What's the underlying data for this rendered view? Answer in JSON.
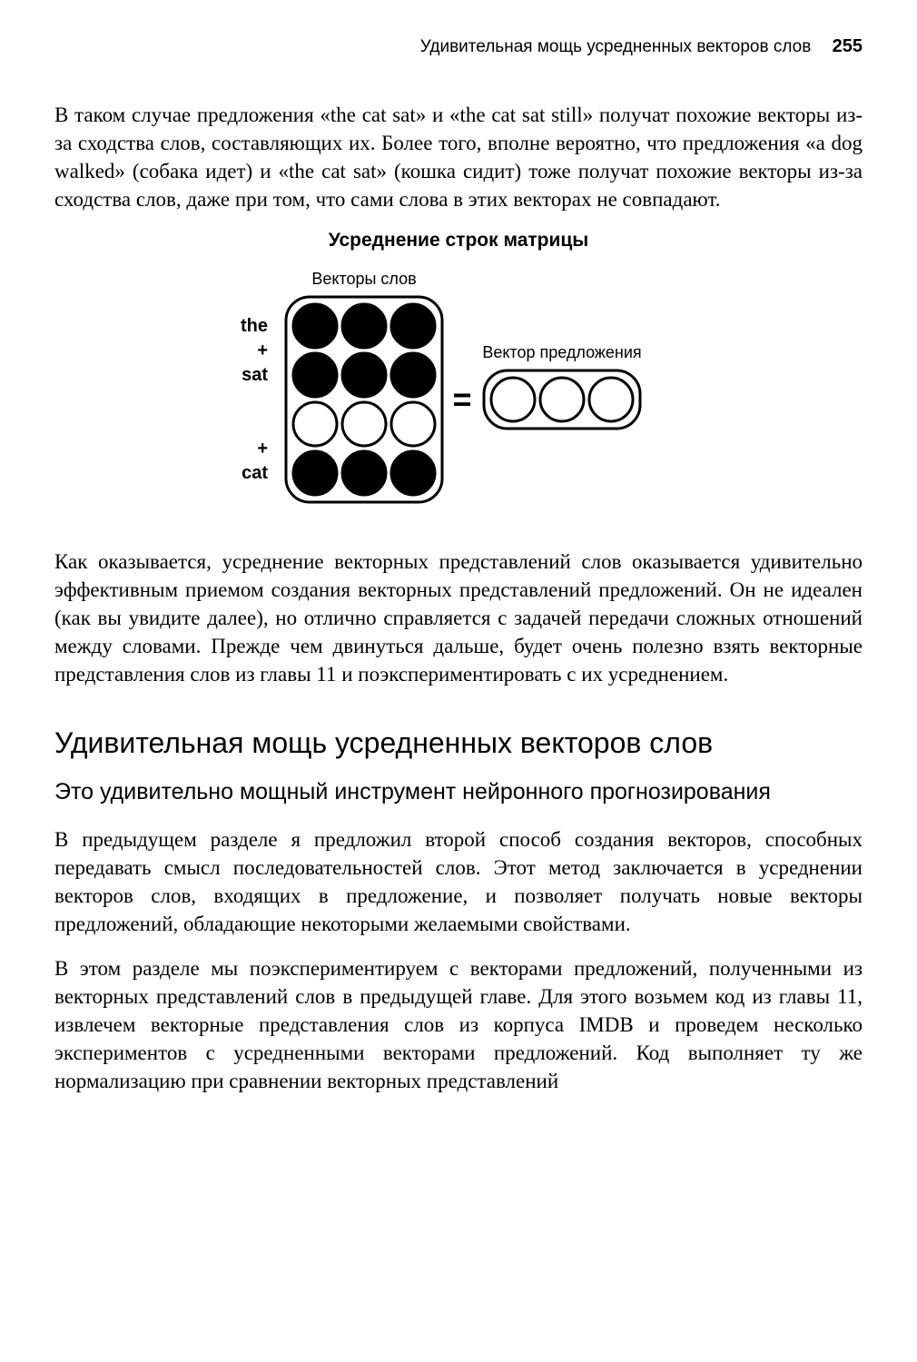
{
  "header": {
    "running_title": "Удивительная мощь усредненных векторов слов",
    "page_number": "255"
  },
  "p1": "В таком случае предложения «the cat sat» и «the cat sat still» получат похожие векторы из-за сходства слов, составляющих их. Более того, вполне вероятно, что предложения «a dog walked» (собака идет) и «the cat sat» (кошка сидит) тоже получат похожие векторы из-за сходства слов, даже при том, что сами слова в этих векторах не совпадают.",
  "diagram": {
    "title": "Усреднение строк матрицы",
    "top_label": "Векторы слов",
    "right_label": "Вектор предложения",
    "row_labels": [
      "the",
      "+",
      "sat",
      "+",
      "cat"
    ],
    "equals": "=",
    "matrix_fill": [
      [
        1,
        1,
        1
      ],
      [
        1,
        1,
        1
      ],
      [
        0,
        0,
        0
      ],
      [
        1,
        1,
        1
      ]
    ],
    "result_fill": [
      0,
      0,
      0
    ],
    "colors": {
      "filled": "#000000",
      "empty": "#ffffff",
      "stroke": "#000000"
    },
    "circle_radius": 24,
    "stroke_width": 3
  },
  "p2": "Как оказывается, усреднение векторных представлений слов оказывается удивительно эффективным приемом создания векторных представлений предложений. Он не идеален (как вы увидите далее), но отлично справляется с задачей передачи сложных отношений между словами. Прежде чем двинуться дальше, будет очень полезно взять векторные представления слов из главы 11 и поэкспериментировать с их усреднением.",
  "section_title": "Удивительная мощь усредненных векторов слов",
  "sub_title": "Это удивительно мощный инструмент нейронного прогнозирования",
  "p3": "В предыдущем разделе я предложил второй способ создания векторов, способных передавать смысл последовательностей слов. Этот метод заключается в усреднении векторов слов, входящих в предложение, и позволяет получать новые векторы предложений, обладающие некоторыми желаемыми свойствами.",
  "p4": "В этом разделе мы поэкспериментируем с векторами предложений, полученными из векторных представлений слов в предыдущей главе. Для этого возьмем код из главы 11, извлечем векторные представления слов из корпуса IMDB и проведем несколько экспериментов с усредненными векторами предложений. Код выполняет ту же нормализацию при сравнении векторных представлений"
}
